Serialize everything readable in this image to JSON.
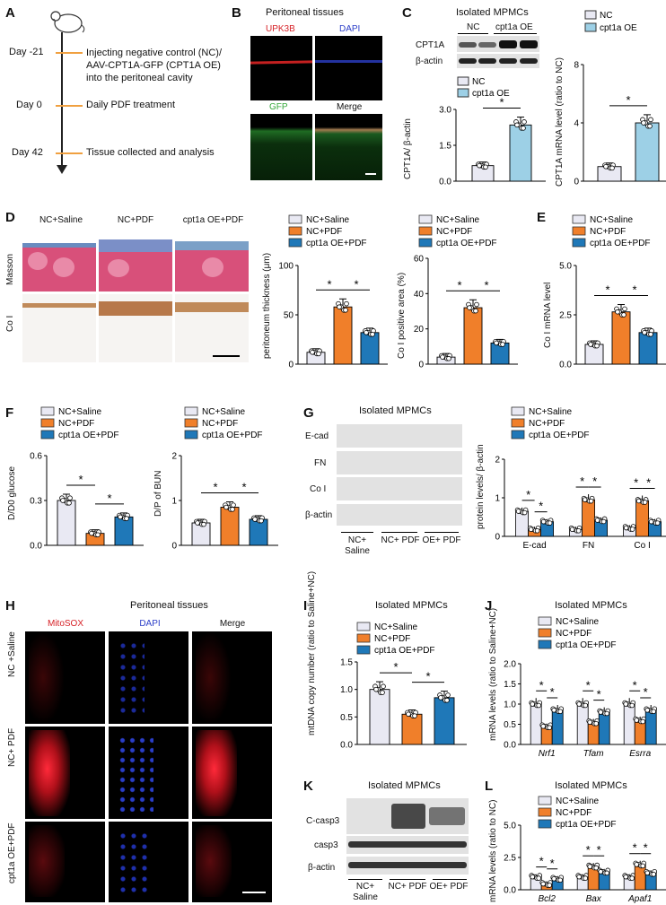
{
  "panels": {
    "A": "A",
    "B": "B",
    "C": "C",
    "D": "D",
    "E": "E",
    "F": "F",
    "G": "G",
    "H": "H",
    "I": "I",
    "J": "J",
    "K": "K",
    "L": "L"
  },
  "panelA": {
    "timeline": [
      {
        "day": "Day -21",
        "text": "Injecting negative control (NC)/ AAV-CPT1A-GFP (CPT1A OE) into the peritoneal cavity"
      },
      {
        "day": "Day 0",
        "text": "Daily PDF treatment"
      },
      {
        "day": "Day 42",
        "text": "Tissue collected and analysis"
      }
    ],
    "line1": "Injecting negative control (NC)/",
    "line2": "AAV-CPT1A-GFP (CPT1A OE)",
    "line3": "into the peritoneal cavity"
  },
  "panelB": {
    "title": "Peritoneal tissues",
    "labels": [
      "UPK3B",
      "DAPI",
      "GFP",
      "Merge"
    ]
  },
  "panelC": {
    "title": "Isolated MPMCs",
    "lane_labels": [
      "NC",
      "cpt1a OE"
    ],
    "row_labels": [
      "CPT1A",
      "β-actin"
    ],
    "legend": [
      "NC",
      "cpt1a OE"
    ],
    "ylabel1": "CPT1A/ β-actin",
    "ylabel2": "CPT1A mRNA level (ratio to NC)"
  },
  "panelD": {
    "col_labels": [
      "NC+Saline",
      "NC+PDF",
      "cpt1a OE+PDF"
    ],
    "row_labels": [
      "Masson",
      "Co I"
    ],
    "legend": [
      "NC+Saline",
      "NC+PDF",
      "cpt1a OE+PDF"
    ],
    "ylabel1": "peritoneum thickness (μm)",
    "ylabel2": "Co I positive area (%)"
  },
  "panelE": {
    "legend": [
      "NC+Saline",
      "NC+PDF",
      "cpt1a OE+PDF"
    ],
    "ylabel": "Co I mRNA level"
  },
  "panelF": {
    "legend1": [
      "NC+Saline",
      "NC+PDF",
      "cpt1a OE+PDF"
    ],
    "legend2": [
      "NC+Saline",
      "NC+PDF",
      "cpt1a OE+PDF"
    ],
    "ylabel1": "D/D0 glucose",
    "ylabel2": "D/P of BUN"
  },
  "panelG": {
    "title": "Isolated MPMCs",
    "row_labels": [
      "E-cad",
      "FN",
      "Co I",
      "β-actin"
    ],
    "lane_groups": [
      "NC+ Saline",
      "NC+ PDF",
      "OE+ PDF"
    ],
    "legend": [
      "NC+Saline",
      "NC+PDF",
      "cpt1a OE+PDF"
    ],
    "ylabel": "protein levels/ β-actin"
  },
  "panelH": {
    "title": "Peritoneal tissues",
    "col_labels": [
      "MitoSOX",
      "DAPI",
      "Merge"
    ],
    "row_labels": [
      "NC +Saline",
      "NC+ PDF",
      "cpt1a OE+PDF"
    ]
  },
  "panelI": {
    "title": "Isolated MPMCs",
    "legend": [
      "NC+Saline",
      "NC+PDF",
      "cpt1a OE+PDF"
    ],
    "ylabel": "mtDNA copy number (ratio to Saline+NC)"
  },
  "panelJ": {
    "title": "Isolated MPMCs",
    "legend": [
      "NC+Saline",
      "NC+PDF",
      "cpt1a OE+PDF"
    ],
    "ylabel": "mRNA levels (ratio to Saline+NC)"
  },
  "panelK": {
    "title": "Isolated MPMCs",
    "row_labels": [
      "C-casp3",
      "casp3",
      "β-actin"
    ],
    "lane_groups": [
      "NC+ Saline",
      "NC+ PDF",
      "OE+ PDF"
    ]
  },
  "panelL": {
    "title": "Isolated MPMCs",
    "legend": [
      "NC+Saline",
      "NC+PDF",
      "cpt1a OE+PDF"
    ],
    "ylabel": "mRNA levels (ratio to NC)"
  },
  "colors": {
    "saline": "#e9e9f3",
    "pdf": "#f07f2a",
    "oe": "#1f78b8",
    "nc": "#e9e9f3",
    "cpt1a_oe": "#9dd0e6",
    "red_stain": "#d61f25",
    "blue_stain": "#2c3ec8",
    "green_stain": "#36a83a",
    "timeline": "#f0a040"
  },
  "chart_data": [
    {
      "id": "C1",
      "type": "bar",
      "categories": [
        "NC",
        "cpt1a OE"
      ],
      "values": [
        0.65,
        2.35
      ],
      "ylabel": "CPT1A/ β-actin",
      "ylim": [
        0,
        3.0
      ],
      "yticks": [
        "0.0",
        "1.5",
        "3.0"
      ],
      "sig": [
        [
          "NC",
          "cpt1a OE"
        ]
      ]
    },
    {
      "id": "C2",
      "type": "bar",
      "categories": [
        "NC",
        "cpt1a OE"
      ],
      "values": [
        1.0,
        4.0
      ],
      "ylabel": "CPT1A mRNA level (ratio to NC)",
      "ylim": [
        0,
        6
      ],
      "yticks": [
        "0",
        "4",
        "8"
      ],
      "sig": [
        [
          "NC",
          "cpt1a OE"
        ]
      ]
    },
    {
      "id": "D1",
      "type": "bar",
      "categories": [
        "NC+Saline",
        "NC+PDF",
        "cpt1a OE+PDF"
      ],
      "values": [
        12,
        58,
        32
      ],
      "ylabel": "peritoneum thickness (μm)",
      "ylim": [
        0,
        100
      ],
      "yticks": [
        "0",
        "50",
        "100"
      ]
    },
    {
      "id": "D2",
      "type": "bar",
      "categories": [
        "NC+Saline",
        "NC+PDF",
        "cpt1a OE+PDF"
      ],
      "values": [
        4,
        32,
        12
      ],
      "ylabel": "Co I positive area (%)",
      "ylim": [
        0,
        60
      ],
      "yticks": [
        "0",
        "20",
        "40",
        "60"
      ]
    },
    {
      "id": "E",
      "type": "bar",
      "categories": [
        "NC+Saline",
        "NC+PDF",
        "cpt1a OE+PDF"
      ],
      "values": [
        1.0,
        2.65,
        1.6
      ],
      "ylabel": "Co I mRNA level",
      "ylim": [
        0,
        5.0
      ],
      "yticks": [
        "0.0",
        "2.5",
        "5.0"
      ]
    },
    {
      "id": "F1",
      "type": "bar",
      "categories": [
        "NC+Saline",
        "NC+PDF",
        "cpt1a OE+PDF"
      ],
      "values": [
        0.3,
        0.08,
        0.19
      ],
      "ylabel": "D/D0 glucose",
      "ylim": [
        0,
        0.6
      ],
      "yticks": [
        "0.0",
        "0.3",
        "0.6"
      ]
    },
    {
      "id": "F2",
      "type": "bar",
      "categories": [
        "NC+Saline",
        "NC+PDF",
        "cpt1a OE+PDF"
      ],
      "values": [
        0.5,
        0.85,
        0.58
      ],
      "ylabel": "D/P of BUN",
      "ylim": [
        0,
        2
      ],
      "yticks": [
        "0",
        "1",
        "2"
      ]
    },
    {
      "id": "G",
      "type": "bar",
      "categories": [
        "E-cad",
        "FN",
        "Co I"
      ],
      "series": [
        {
          "name": "NC+Saline",
          "values": [
            0.65,
            0.18,
            0.22
          ]
        },
        {
          "name": "NC+PDF",
          "values": [
            0.18,
            0.95,
            0.92
          ]
        },
        {
          "name": "cpt1a OE+PDF",
          "values": [
            0.38,
            0.42,
            0.38
          ]
        }
      ],
      "ylabel": "protein levels/ β-actin",
      "ylim": [
        0,
        2
      ],
      "yticks": [
        "0",
        "1",
        "2"
      ]
    },
    {
      "id": "I",
      "type": "bar",
      "categories": [
        "NC+Saline",
        "NC+PDF",
        "cpt1a OE+PDF"
      ],
      "values": [
        1.0,
        0.55,
        0.85
      ],
      "ylabel": "mtDNA copy number (ratio to Saline+NC)",
      "ylim": [
        0,
        1.5
      ],
      "yticks": [
        "0.0",
        "0.5",
        "1.0",
        "1.5"
      ]
    },
    {
      "id": "J",
      "type": "bar",
      "categories": [
        "Nrf1",
        "Tfam",
        "Esrra"
      ],
      "series": [
        {
          "name": "NC+Saline",
          "values": [
            1.0,
            1.0,
            1.0
          ]
        },
        {
          "name": "NC+PDF",
          "values": [
            0.45,
            0.55,
            0.6
          ]
        },
        {
          "name": "cpt1a OE+PDF",
          "values": [
            0.85,
            0.8,
            0.85
          ]
        }
      ],
      "ylabel": "mRNA levels (ratio to Saline+NC)",
      "ylim": [
        0,
        2.0
      ],
      "yticks": [
        "0.0",
        "0.5",
        "1.0",
        "1.5",
        "2.0"
      ]
    },
    {
      "id": "L",
      "type": "bar",
      "categories": [
        "Bcl2",
        "Bax",
        "Apaf1"
      ],
      "series": [
        {
          "name": "NC+Saline",
          "values": [
            1.0,
            1.0,
            1.0
          ]
        },
        {
          "name": "NC+PDF",
          "values": [
            0.45,
            1.8,
            1.95
          ]
        },
        {
          "name": "cpt1a OE+PDF",
          "values": [
            0.85,
            1.4,
            1.3
          ]
        }
      ],
      "ylabel": "mRNA levels (ratio to NC)",
      "ylim": [
        0,
        5.0
      ],
      "yticks": [
        "0.0",
        "2.5",
        "5.0"
      ]
    }
  ]
}
